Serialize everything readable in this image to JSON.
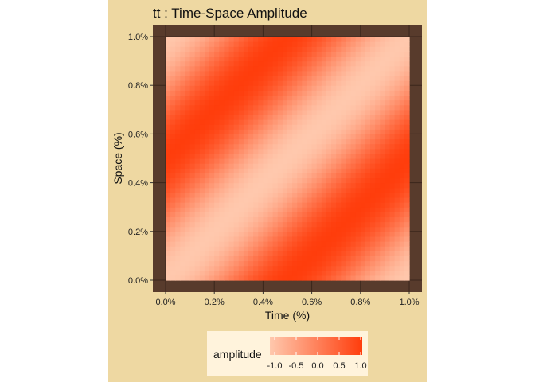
{
  "chart_data": {
    "type": "heatmap",
    "title": "tt : Time-Space Amplitude",
    "xlabel": "Time (%)",
    "ylabel": "Space (%)",
    "x_ticks": [
      "0.0%",
      "0.2%",
      "0.4%",
      "0.6%",
      "0.8%",
      "1.0%"
    ],
    "y_ticks": [
      "0.0%",
      "0.2%",
      "0.4%",
      "0.6%",
      "0.8%",
      "1.0%"
    ],
    "xlim": [
      0,
      0.01
    ],
    "ylim": [
      0,
      0.01
    ],
    "function": "amplitude = -cos(2*pi*(x - y)/0.01)",
    "fill_scale": {
      "name": "amplitude",
      "breaks": [
        "-1.0",
        "-0.5",
        "0.0",
        "0.5",
        "1.0"
      ],
      "limits": [
        -1,
        1
      ],
      "low_color": "#ffc8ad",
      "high_color": "#ff3d0c"
    },
    "legend_position": "bottom",
    "grid": true,
    "colors": {
      "page_background": "#ffffff",
      "plot_background": "#eed8a2",
      "panel_background": "#583b2c",
      "grid_line": "#3a261b",
      "legend_background": "#fff3dc"
    }
  }
}
